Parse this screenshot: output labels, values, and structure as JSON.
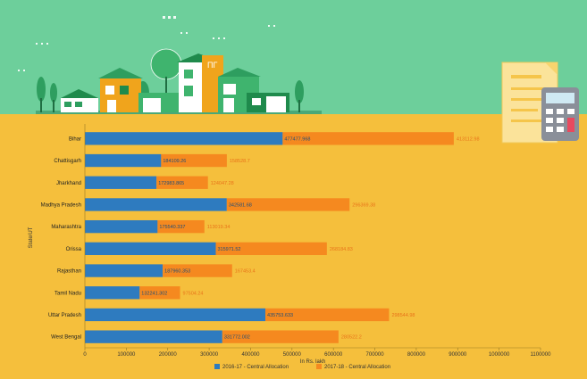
{
  "colors": {
    "sky": "#6dcf9b",
    "ground": "#f5bf3c",
    "series_a": "#2e7bbf",
    "series_b": "#f5891f"
  },
  "illustration": {
    "scene": "houses-and-trees-illustration",
    "calculator": "calculator-icon",
    "document": "document-icon"
  },
  "chart_data": {
    "type": "bar",
    "orientation": "horizontal",
    "stacked": true,
    "title": "",
    "xlabel": "In Rs. lakh",
    "ylabel": "State/UT",
    "xlim": [
      0,
      1100000
    ],
    "x_ticks": [
      "0",
      "100000",
      "200000",
      "300000",
      "400000",
      "500000",
      "600000",
      "700000",
      "800000",
      "900000",
      "1000000",
      "1100000"
    ],
    "grid": false,
    "legend_position": "bottom",
    "categories": [
      "Bihar",
      "Chattisgarh",
      "Jharkhand",
      "Madhya Pradesh",
      "Maharashtra",
      "Orissa",
      "Rajasthan",
      "Tamil Nadu",
      "Uttar Pradesh",
      "West Bengal"
    ],
    "series": [
      {
        "name": "2016-17 - Central Allocation",
        "values": [
          477477.968,
          184109.26,
          172983.865,
          342581.68,
          175540.337,
          315971.52,
          187960.353,
          132241.302,
          435753.633,
          331772.002
        ],
        "labels": [
          "477477.968",
          "184109.26",
          "172983.865",
          "342581.68",
          "175540.337",
          "315971.52",
          "187960.353",
          "132241.302",
          "435753.633",
          "331772.002"
        ]
      },
      {
        "name": "2017-18 - Central Allocation",
        "values": [
          413112.98,
          158528.7,
          124047.28,
          296369.38,
          113019.34,
          268184.83,
          167453.4,
          97504.24,
          298544.98,
          280522.2
        ],
        "labels": [
          "413112.98",
          "158528.7",
          "124047.28",
          "296369.38",
          "113019.34",
          "268184.83",
          "167453.4",
          "97504.24",
          "298544.98",
          "280522.2"
        ]
      }
    ]
  }
}
